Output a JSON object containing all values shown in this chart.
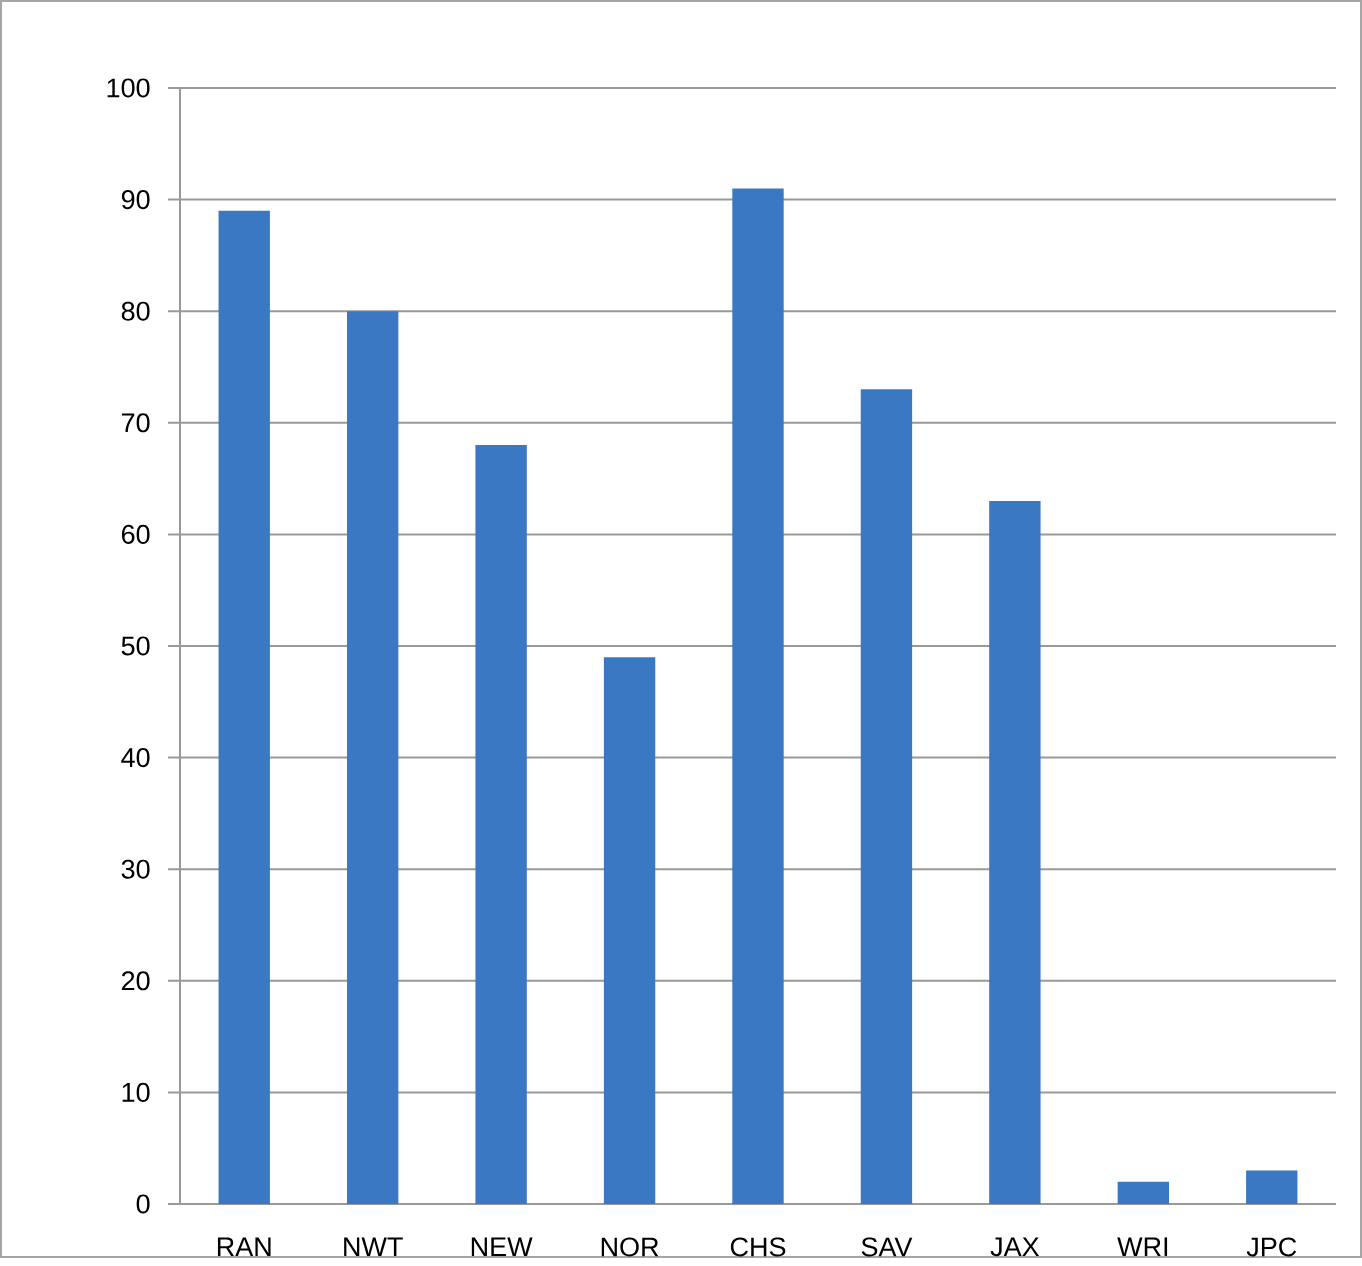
{
  "chart_data": {
    "type": "bar",
    "categories": [
      "RAN",
      "NWT",
      "NEW",
      "NOR",
      "CHS",
      "SAV",
      "JAX",
      "WRI",
      "JPC"
    ],
    "values": [
      89,
      80,
      68,
      49,
      91,
      73,
      63,
      2,
      3
    ],
    "color": "#3b78c3",
    "ylim": [
      0,
      100
    ],
    "yticks": [
      0,
      10,
      20,
      30,
      40,
      50,
      60,
      70,
      80,
      90,
      100
    ],
    "grid": "y"
  }
}
